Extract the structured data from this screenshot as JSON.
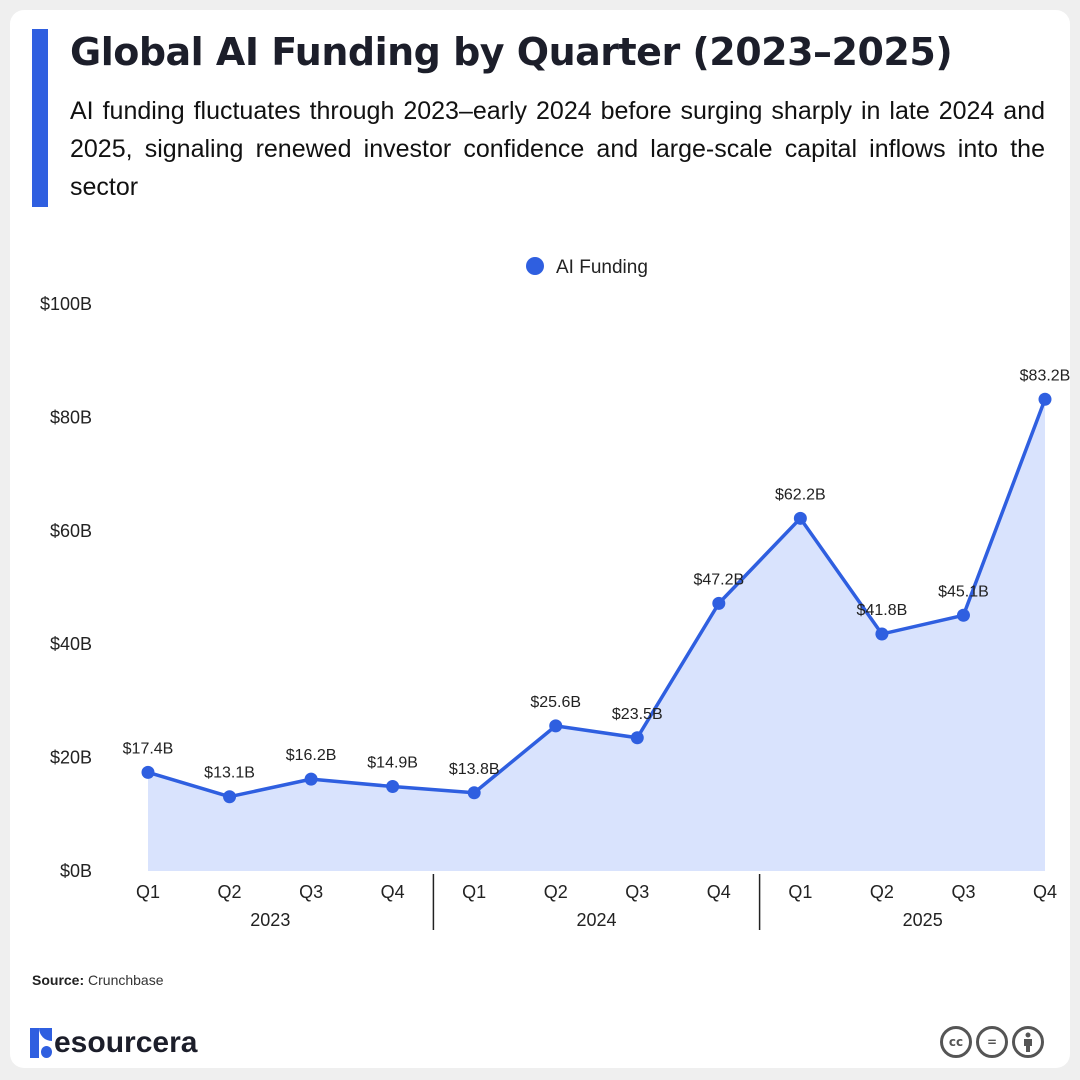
{
  "header": {
    "title": "Global AI Funding by Quarter (2023–2025)",
    "subtitle": "AI funding fluctuates through 2023–early 2024 before surging sharply in late 2024 and 2025, signaling renewed investor confidence and large-scale capital inflows into the sector"
  },
  "chart_data": {
    "type": "area",
    "legend_position": "top-center",
    "ylim": [
      0,
      100
    ],
    "y_ticks": [
      "$0B",
      "$20B",
      "$40B",
      "$60B",
      "$80B",
      "$100B"
    ],
    "y_tick_values": [
      0,
      20,
      40,
      60,
      80,
      100
    ],
    "grid": false,
    "categories": [
      "Q1",
      "Q2",
      "Q3",
      "Q4",
      "Q1",
      "Q2",
      "Q3",
      "Q4",
      "Q1",
      "Q2",
      "Q3",
      "Q4"
    ],
    "groups": [
      "2023",
      "2024",
      "2025"
    ],
    "series": [
      {
        "name": "AI Funding",
        "color": "#2f5fe0",
        "fill": "#d9e3fd",
        "values": [
          17.4,
          13.1,
          16.2,
          14.9,
          13.8,
          25.6,
          23.5,
          47.2,
          62.2,
          41.8,
          45.1,
          83.2
        ],
        "labels": [
          "$17.4B",
          "$13.1B",
          "$16.2B",
          "$14.9B",
          "$13.8B",
          "$25.6B",
          "$23.5B",
          "$47.2B",
          "$62.2B",
          "$41.8B",
          "$45.1B",
          "$83.2B"
        ]
      }
    ]
  },
  "footer": {
    "source_label": "Source:",
    "source": "Crunchbase",
    "brand": "esourcera",
    "license_icons": [
      "cc-icon",
      "equals-icon",
      "person-icon"
    ],
    "cc_text": "cc",
    "eq_text": "="
  }
}
